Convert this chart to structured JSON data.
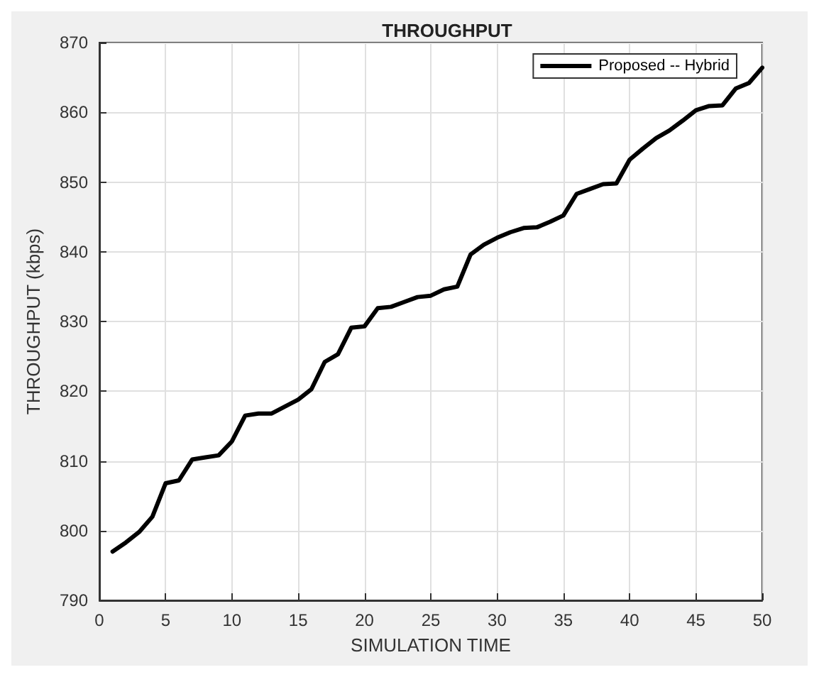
{
  "chart_data": {
    "type": "line",
    "title": "THROUGHPUT",
    "xlabel": "SIMULATION TIME",
    "ylabel": "THROUGHPUT (kbps)",
    "x": [
      1,
      2,
      3,
      4,
      5,
      6,
      7,
      8,
      9,
      10,
      11,
      12,
      13,
      14,
      15,
      16,
      17,
      18,
      19,
      20,
      21,
      22,
      23,
      24,
      25,
      26,
      27,
      28,
      29,
      30,
      31,
      32,
      33,
      34,
      35,
      36,
      37,
      38,
      39,
      40,
      41,
      42,
      43,
      44,
      45,
      46,
      47,
      48,
      49,
      50
    ],
    "series": [
      {
        "name": "Proposed -- Hybrid",
        "color": "#000000",
        "values": [
          797,
          798.3,
          799.8,
          802,
          806.8,
          807.2,
          810.2,
          810.5,
          810.8,
          812.8,
          816.5,
          816.8,
          816.8,
          817.8,
          818.8,
          820.3,
          824.2,
          825.3,
          829.1,
          829.3,
          831.9,
          832.1,
          832.8,
          833.5,
          833.7,
          834.6,
          835,
          839.6,
          841,
          842,
          842.8,
          843.4,
          843.5,
          844.3,
          845.2,
          848.3,
          849,
          849.7,
          849.8,
          853.2,
          854.8,
          856.3,
          857.4,
          858.8,
          860.3,
          860.9,
          861,
          863.4,
          864.2,
          866.4
        ]
      }
    ],
    "xlim": [
      0,
      50
    ],
    "xticks": [
      0,
      5,
      10,
      15,
      20,
      25,
      30,
      35,
      40,
      45,
      50
    ],
    "ylim": [
      790,
      870
    ],
    "yticks": [
      790,
      800,
      810,
      820,
      830,
      840,
      850,
      860,
      870
    ],
    "grid": true,
    "legend": "top right",
    "marker": "none",
    "line_style": "solid"
  }
}
